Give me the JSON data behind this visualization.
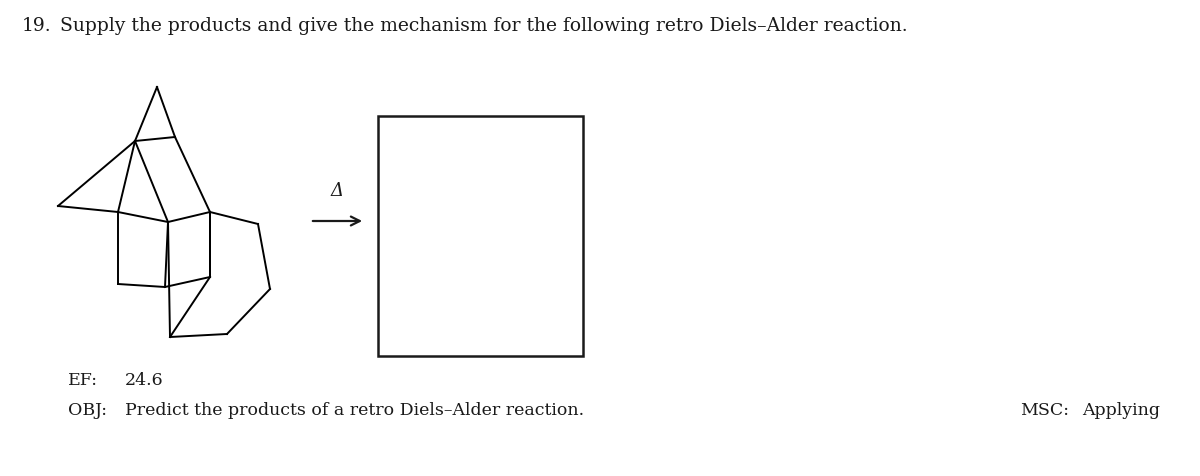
{
  "title_number": "19.",
  "title_text": "Supply the products and give the mechanism for the following retro Diels–Alder reaction.",
  "title_fontsize": 13.5,
  "arrow_label": "Δ",
  "ef_label": "EF:",
  "ef_value": "24.6",
  "obj_label": "OBJ:",
  "obj_text": "Predict the products of a retro Diels–Alder reaction.",
  "msc_label": "MSC:",
  "msc_value": "Applying",
  "background_color": "#ffffff",
  "line_color": "#1a1a1a",
  "text_color": "#1a1a1a",
  "molecule_color": "#000000",
  "meta_fontsize": 12.5
}
